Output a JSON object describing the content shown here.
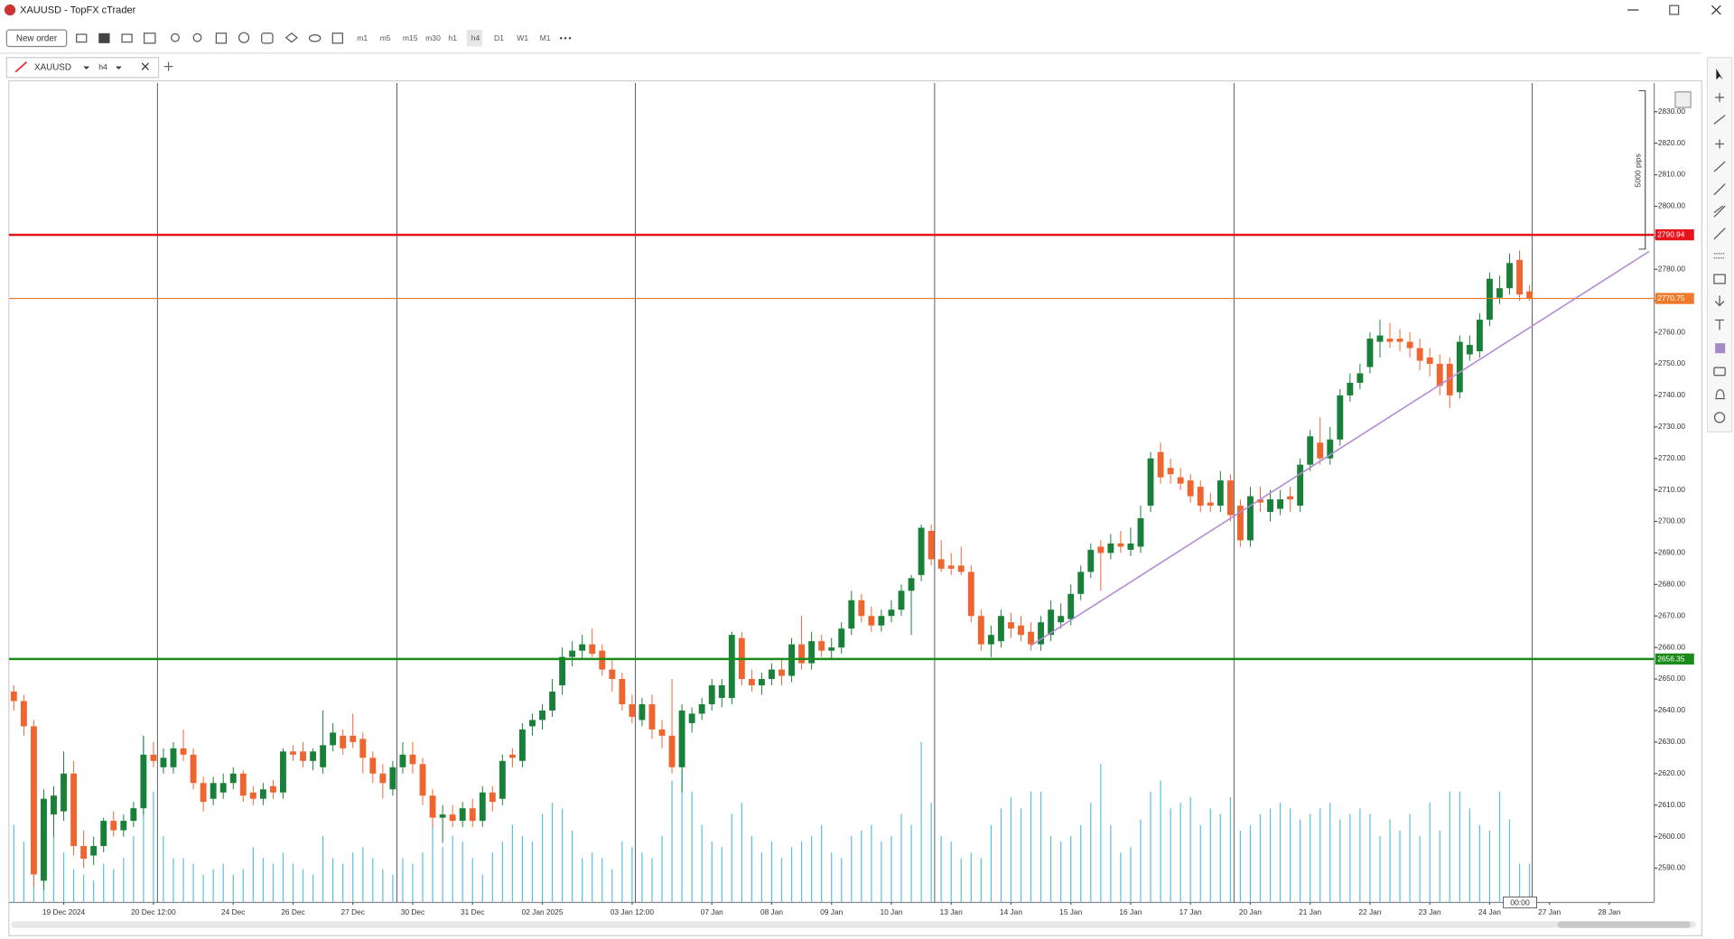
{
  "app": {
    "title": "XAUUSD - TopFX cTrader",
    "new_order": "New order",
    "timeframes": [
      "m1",
      "m5",
      "m15",
      "m30",
      "h1",
      "h4",
      "D1",
      "W1",
      "M1"
    ],
    "tab_symbol": "XAUUSD",
    "tab_period": "h4",
    "ruler_label": "5000 pips",
    "time_label": "00:00"
  },
  "chart_data": {
    "type": "candlestick",
    "up_color": "#188038",
    "down_color": "#ef6530",
    "volume_color": "#5bc0de",
    "ylim": [
      2579.1,
      2839.1
    ],
    "yticks": [
      {
        "value": 2590,
        "label": "2590.00"
      },
      {
        "value": 2600,
        "label": "2600.00"
      },
      {
        "value": 2610,
        "label": "2610.00"
      },
      {
        "value": 2620,
        "label": "2620.00"
      },
      {
        "value": 2630,
        "label": "2630.00"
      },
      {
        "value": 2640,
        "label": "2640.00"
      },
      {
        "value": 2650,
        "label": "2650.00"
      },
      {
        "value": 2660,
        "label": "2660.00"
      },
      {
        "value": 2670,
        "label": "2670.00"
      },
      {
        "value": 2680,
        "label": "2680.00"
      },
      {
        "value": 2690,
        "label": "2690.00"
      },
      {
        "value": 2700,
        "label": "2700.00"
      },
      {
        "value": 2710,
        "label": "2710.00"
      },
      {
        "value": 2720,
        "label": "2720.00"
      },
      {
        "value": 2730,
        "label": "2730.00"
      },
      {
        "value": 2740,
        "label": "2740.00"
      },
      {
        "value": 2750,
        "label": "2750.00"
      },
      {
        "value": 2760,
        "label": "2760.00"
      },
      {
        "value": 2770,
        "label": "2770.00"
      },
      {
        "value": 2780,
        "label": "2780.00"
      },
      {
        "value": 2790,
        "label": "2790.00"
      },
      {
        "value": 2800,
        "label": "2800.00"
      },
      {
        "value": 2810,
        "label": "2810.00"
      },
      {
        "value": 2820,
        "label": "2820.00"
      },
      {
        "value": 2830,
        "label": "2830.00"
      }
    ],
    "categories": [
      null,
      null,
      null,
      null,
      null,
      "19 Dec 2024",
      null,
      null,
      null,
      null,
      null,
      null,
      null,
      null,
      "20 Dec 12:00",
      null,
      null,
      null,
      null,
      null,
      null,
      null,
      "24 Dec",
      null,
      null,
      null,
      null,
      null,
      "26 Dec",
      null,
      null,
      null,
      null,
      null,
      "27 Dec",
      null,
      null,
      null,
      null,
      null,
      "30 Dec",
      null,
      null,
      null,
      null,
      null,
      "31 Dec",
      null,
      null,
      null,
      null,
      null,
      null,
      "02 Jan 2025",
      null,
      null,
      null,
      null,
      null,
      null,
      null,
      null,
      "03 Jan 12:00",
      null,
      null,
      null,
      null,
      null,
      null,
      null,
      "07 Jan",
      null,
      null,
      null,
      null,
      null,
      "08 Jan",
      null,
      null,
      null,
      null,
      null,
      "09 Jan",
      null,
      null,
      null,
      null,
      null,
      "10 Jan",
      null,
      null,
      null,
      null,
      null,
      "13 Jan",
      null,
      null,
      null,
      null,
      null,
      "14 Jan",
      null,
      null,
      null,
      null,
      null,
      "15 Jan",
      null,
      null,
      null,
      null,
      null,
      "16 Jan",
      null,
      null,
      null,
      null,
      null,
      "17 Jan",
      null,
      null,
      null,
      null,
      null,
      "20 Jan",
      null,
      null,
      null,
      null,
      null,
      "21 Jan",
      null,
      null,
      null,
      null,
      null,
      "22 Jan",
      null,
      null,
      null,
      null,
      null,
      "23 Jan",
      null,
      null,
      null,
      null,
      null,
      "24 Jan",
      null,
      null,
      null,
      null,
      null,
      "27 Jan",
      null,
      null,
      null,
      null,
      null,
      "28 Jan",
      null,
      null,
      null,
      null
    ],
    "open": [
      2646,
      2643,
      2635,
      2586,
      2607,
      2608,
      2620,
      2597,
      2594,
      2597,
      2605,
      2602,
      2605,
      2609,
      2626,
      2622,
      2622,
      2628,
      2626,
      2617,
      2612,
      2614,
      2617,
      2620,
      2614,
      2612,
      2616,
      2614,
      2627,
      2627,
      2624,
      2622,
      2629,
      2632,
      2632,
      2631,
      2625,
      2620,
      2615,
      2622,
      2626,
      2623,
      2613,
      2606,
      2607,
      2605,
      2609,
      2605,
      2614,
      2612,
      2626,
      2624,
      2635,
      2637,
      2640,
      2648,
      2657,
      2659,
      2661,
      2659,
      2653,
      2650,
      2642,
      2637,
      2642,
      2634,
      2632,
      2622,
      2636,
      2639,
      2642,
      2644,
      2644,
      2663,
      2650,
      2648,
      2650,
      2653,
      2651,
      2661,
      2655,
      2662,
      2659,
      2660,
      2666,
      2675,
      2670,
      2667,
      2670,
      2672,
      2678,
      2683,
      2697,
      2688,
      2686,
      2686,
      2684,
      2670,
      2661,
      2662,
      2668,
      2667,
      2665,
      2661,
      2664,
      2668,
      2669,
      2677,
      2684,
      2692,
      2690,
      2693,
      2691,
      2692,
      2705,
      2722,
      2717,
      2714,
      2713,
      2711,
      2706,
      2705,
      2713,
      2705,
      2694,
      2707,
      2703,
      2704,
      2708,
      2705,
      2718,
      2725,
      2720,
      2726,
      2740,
      2744,
      2749,
      2757,
      2758,
      2758,
      2757,
      2755,
      2752,
      2750,
      2750,
      2741,
      2753,
      2754,
      2764,
      2771,
      2774,
      2783,
      2773,
      null,
      null,
      null,
      null,
      null,
      null,
      null,
      null,
      null,
      null,
      null,
      null
    ],
    "high": [
      2648,
      2645,
      2637,
      2615,
      2616,
      2627,
      2624,
      2602,
      2600,
      2606,
      2608,
      2607,
      2611,
      2632,
      2630,
      2628,
      2630,
      2634,
      2628,
      2619,
      2619,
      2620,
      2622,
      2621,
      2616,
      2617,
      2618,
      2628,
      2629,
      2630,
      2628,
      2640,
      2636,
      2634,
      2639,
      2633,
      2627,
      2623,
      2624,
      2630,
      2630,
      2625,
      2615,
      2610,
      2610,
      2611,
      2612,
      2616,
      2616,
      2626,
      2628,
      2636,
      2639,
      2642,
      2650,
      2660,
      2662,
      2664,
      2666,
      2661,
      2656,
      2652,
      2645,
      2644,
      2645,
      2637,
      2650,
      2642,
      2641,
      2644,
      2650,
      2650,
      2665,
      2665,
      2653,
      2652,
      2655,
      2656,
      2663,
      2670,
      2665,
      2664,
      2663,
      2668,
      2678,
      2677,
      2673,
      2672,
      2675,
      2680,
      2683,
      2699,
      2699,
      2694,
      2690,
      2692,
      2686,
      2672,
      2667,
      2672,
      2671,
      2670,
      2668,
      2670,
      2675,
      2674,
      2680,
      2686,
      2693,
      2694,
      2696,
      2697,
      2698,
      2705,
      2722,
      2725,
      2720,
      2717,
      2715,
      2713,
      2709,
      2716,
      2715,
      2707,
      2711,
      2711,
      2710,
      2710,
      2711,
      2720,
      2729,
      2733,
      2730,
      2742,
      2747,
      2750,
      2760,
      2764,
      2763,
      2761,
      2760,
      2758,
      2755,
      2753,
      2752,
      2759,
      2759,
      2766,
      2779,
      2778,
      2785,
      2786,
      2775,
      null,
      null,
      null,
      null,
      null,
      null,
      null,
      null,
      null,
      null,
      null,
      null
    ],
    "low": [
      2640,
      2632,
      2584,
      2583,
      2600,
      2605,
      2594,
      2590,
      2591,
      2595,
      2600,
      2600,
      2603,
      2607,
      2622,
      2620,
      2620,
      2624,
      2615,
      2608,
      2610,
      2612,
      2615,
      2611,
      2610,
      2610,
      2612,
      2612,
      2624,
      2622,
      2621,
      2620,
      2627,
      2626,
      2628,
      2620,
      2617,
      2612,
      2613,
      2620,
      2620,
      2610,
      2603,
      2598,
      2603,
      2603,
      2603,
      2603,
      2608,
      2610,
      2622,
      2622,
      2632,
      2634,
      2638,
      2645,
      2654,
      2656,
      2657,
      2651,
      2646,
      2640,
      2636,
      2635,
      2631,
      2628,
      2620,
      2614,
      2633,
      2637,
      2640,
      2641,
      2642,
      2648,
      2646,
      2645,
      2648,
      2648,
      2649,
      2653,
      2653,
      2657,
      2656,
      2658,
      2664,
      2668,
      2665,
      2665,
      2668,
      2670,
      2664,
      2681,
      2686,
      2684,
      2683,
      2683,
      2668,
      2659,
      2657,
      2660,
      2663,
      2662,
      2659,
      2659,
      2662,
      2666,
      2667,
      2675,
      2682,
      2678,
      2688,
      2690,
      2689,
      2690,
      2703,
      2712,
      2712,
      2710,
      2706,
      2703,
      2703,
      2703,
      2700,
      2692,
      2692,
      2703,
      2700,
      2702,
      2703,
      2703,
      2716,
      2718,
      2718,
      2724,
      2738,
      2742,
      2747,
      2752,
      2755,
      2754,
      2752,
      2748,
      2746,
      2740,
      2736,
      2739,
      2751,
      2752,
      2762,
      2769,
      2772,
      2770,
      2770,
      null,
      null,
      null,
      null,
      null,
      null,
      null,
      null,
      null,
      null,
      null,
      null
    ],
    "close": [
      2643,
      2635,
      2588,
      2612,
      2613,
      2620,
      2597,
      2593,
      2597,
      2605,
      2602,
      2605,
      2609,
      2626,
      2624,
      2625,
      2628,
      2626,
      2617,
      2611,
      2617,
      2617,
      2620,
      2613,
      2612,
      2615,
      2614,
      2627,
      2626,
      2624,
      2627,
      2629,
      2633,
      2628,
      2630,
      2625,
      2620,
      2617,
      2622,
      2626,
      2623,
      2613,
      2606,
      2607,
      2605,
      2609,
      2605,
      2614,
      2611,
      2624,
      2625,
      2634,
      2637,
      2640,
      2646,
      2657,
      2659,
      2661,
      2658,
      2653,
      2650,
      2642,
      2638,
      2642,
      2634,
      2632,
      2622,
      2640,
      2639,
      2642,
      2648,
      2648,
      2664,
      2650,
      2648,
      2650,
      2653,
      2651,
      2661,
      2655,
      2662,
      2659,
      2660,
      2666,
      2675,
      2670,
      2667,
      2670,
      2672,
      2678,
      2682,
      2698,
      2688,
      2685,
      2685,
      2684,
      2670,
      2661,
      2664,
      2670,
      2666,
      2664,
      2661,
      2668,
      2672,
      2670,
      2677,
      2684,
      2691,
      2690,
      2693,
      2692,
      2693,
      2701,
      2720,
      2714,
      2715,
      2712,
      2708,
      2705,
      2705,
      2713,
      2702,
      2694,
      2708,
      2706,
      2707,
      2707,
      2707,
      2718,
      2727,
      2720,
      2726,
      2740,
      2744,
      2747,
      2758,
      2759,
      2757,
      2757,
      2755,
      2751,
      2750,
      2743,
      2740,
      2757,
      2756,
      2764,
      2777,
      2774,
      2782,
      2772,
      2770.75,
      null,
      null,
      null,
      null,
      null,
      null,
      null,
      null,
      null,
      null,
      null,
      null
    ],
    "volume": [
      70,
      55,
      90,
      80,
      60,
      45,
      30,
      25,
      20,
      35,
      30,
      40,
      60,
      150,
      100,
      60,
      40,
      40,
      35,
      25,
      30,
      35,
      25,
      30,
      50,
      40,
      35,
      45,
      35,
      30,
      25,
      60,
      40,
      35,
      45,
      50,
      40,
      30,
      25,
      40,
      35,
      45,
      70,
      50,
      60,
      55,
      40,
      25,
      45,
      55,
      70,
      60,
      55,
      80,
      90,
      85,
      65,
      40,
      45,
      40,
      30,
      55,
      50,
      45,
      40,
      60,
      110,
      120,
      100,
      70,
      55,
      50,
      80,
      90,
      60,
      45,
      55,
      40,
      50,
      55,
      60,
      70,
      45,
      40,
      60,
      65,
      70,
      55,
      60,
      80,
      70,
      145,
      90,
      60,
      55,
      40,
      45,
      40,
      70,
      85,
      95,
      85,
      100,
      100,
      60,
      55,
      60,
      70,
      90,
      125,
      70,
      45,
      50,
      75,
      100,
      110,
      85,
      90,
      95,
      70,
      85,
      80,
      95,
      65,
      70,
      80,
      85,
      90,
      85,
      75,
      80,
      85,
      90,
      75,
      80,
      85,
      80,
      60,
      75,
      65,
      80,
      60,
      90,
      65,
      100,
      100,
      85,
      70,
      65,
      100,
      75,
      35,
      35,
      null,
      null,
      null,
      null,
      null,
      null,
      null,
      null,
      null,
      null,
      null,
      null
    ],
    "hlines": [
      {
        "value": 2790.94,
        "color": "#e8141b"
      },
      {
        "value": 2770.75,
        "color": "#f07a2c"
      },
      {
        "value": 2656.35,
        "color": "#1a8a1a"
      }
    ],
    "trendline": {
      "color": "#b48ad6",
      "x": [
        102.5,
        164.5
      ],
      "y": [
        2660.6,
        2785.7
      ]
    }
  }
}
